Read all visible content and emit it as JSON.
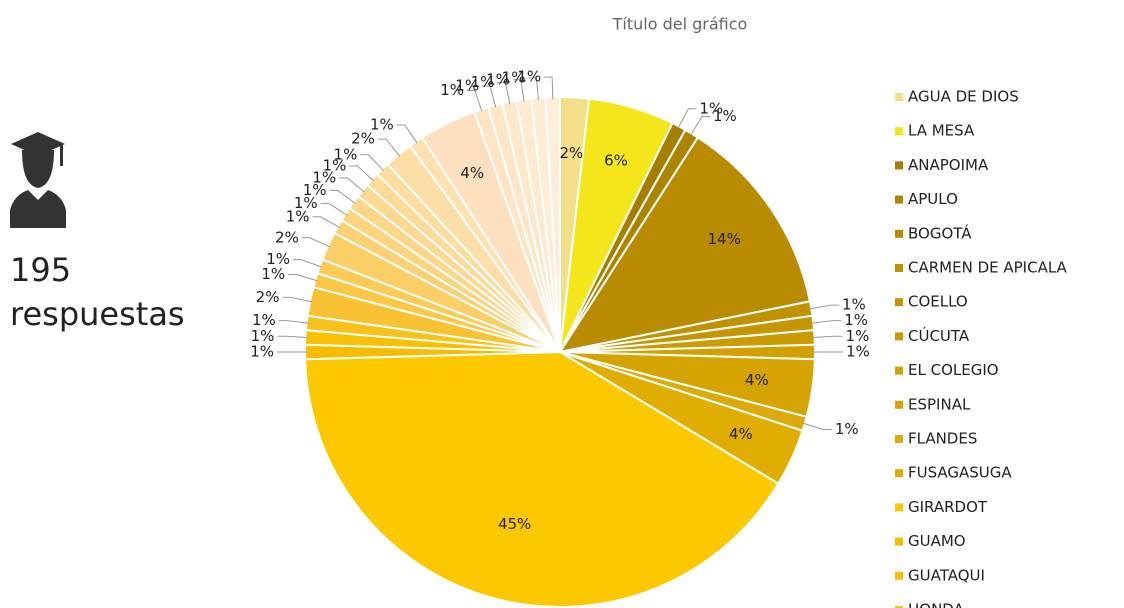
{
  "side_panel": {
    "count": "195",
    "caption": "respuestas"
  },
  "chart_data": {
    "type": "pie",
    "title": "Título del gráfico",
    "categories": [
      "AGUA DE DIOS",
      "LA MESA",
      "ANAPOIMA",
      "APULO",
      "BOGOTÁ",
      "CARMEN DE APICALA",
      "COELLO",
      "CÚCUTA",
      "EL COLEGIO",
      "ESPINAL",
      "FLANDES",
      "FUSAGASUGA",
      "GIRARDOT",
      "GUAMO",
      "GUATAQUI",
      "HONDA",
      null,
      null,
      null,
      null,
      null,
      null,
      null,
      null,
      null,
      null,
      null,
      null,
      null,
      null,
      null,
      null,
      null,
      null,
      null
    ],
    "values": [
      2,
      6,
      1,
      1,
      14,
      1,
      1,
      1,
      1,
      4,
      1,
      4,
      45,
      1,
      1,
      1,
      2,
      1,
      1,
      2,
      1,
      1,
      1,
      1,
      1,
      1,
      2,
      1,
      4,
      1,
      1,
      1,
      1,
      1,
      1
    ],
    "value_labels": [
      "2%",
      "6%",
      "1%",
      "1%",
      "14%",
      "1%",
      "1%",
      "1%",
      "1%",
      "4%",
      "1%",
      "4%",
      "45%",
      "1%",
      "1%",
      "1%",
      "2%",
      "1%",
      "1%",
      "2%",
      "1%",
      "1%",
      "1%",
      "1%",
      "1%",
      "1%",
      "2%",
      "1%",
      "4%",
      "1%",
      "1%",
      "1%",
      "1%",
      "1%",
      "1%"
    ],
    "colors": [
      "#f3df88",
      "#f5e61c",
      "#a77d00",
      "#ad8400",
      "#b98b00",
      "#c09100",
      "#c69600",
      "#cc9b00",
      "#d2a000",
      "#d6a400",
      "#dcaa0a",
      "#e0ae00",
      "#fcc800",
      "#f5bd00",
      "#f8c000",
      "#f9c21a",
      "#f9c232",
      "#fac844",
      "#fbcb56",
      "#fbce66",
      "#fbd174",
      "#fbd47e",
      "#fcd688",
      "#fcd990",
      "#fcdb98",
      "#fcdda0",
      "#fcdfa8",
      "#fde1b0",
      "#fde0c0",
      "#fde4c4",
      "#fde6c8",
      "#fee8cc",
      "#feead0",
      "#feecd4",
      "#feeed8"
    ]
  }
}
